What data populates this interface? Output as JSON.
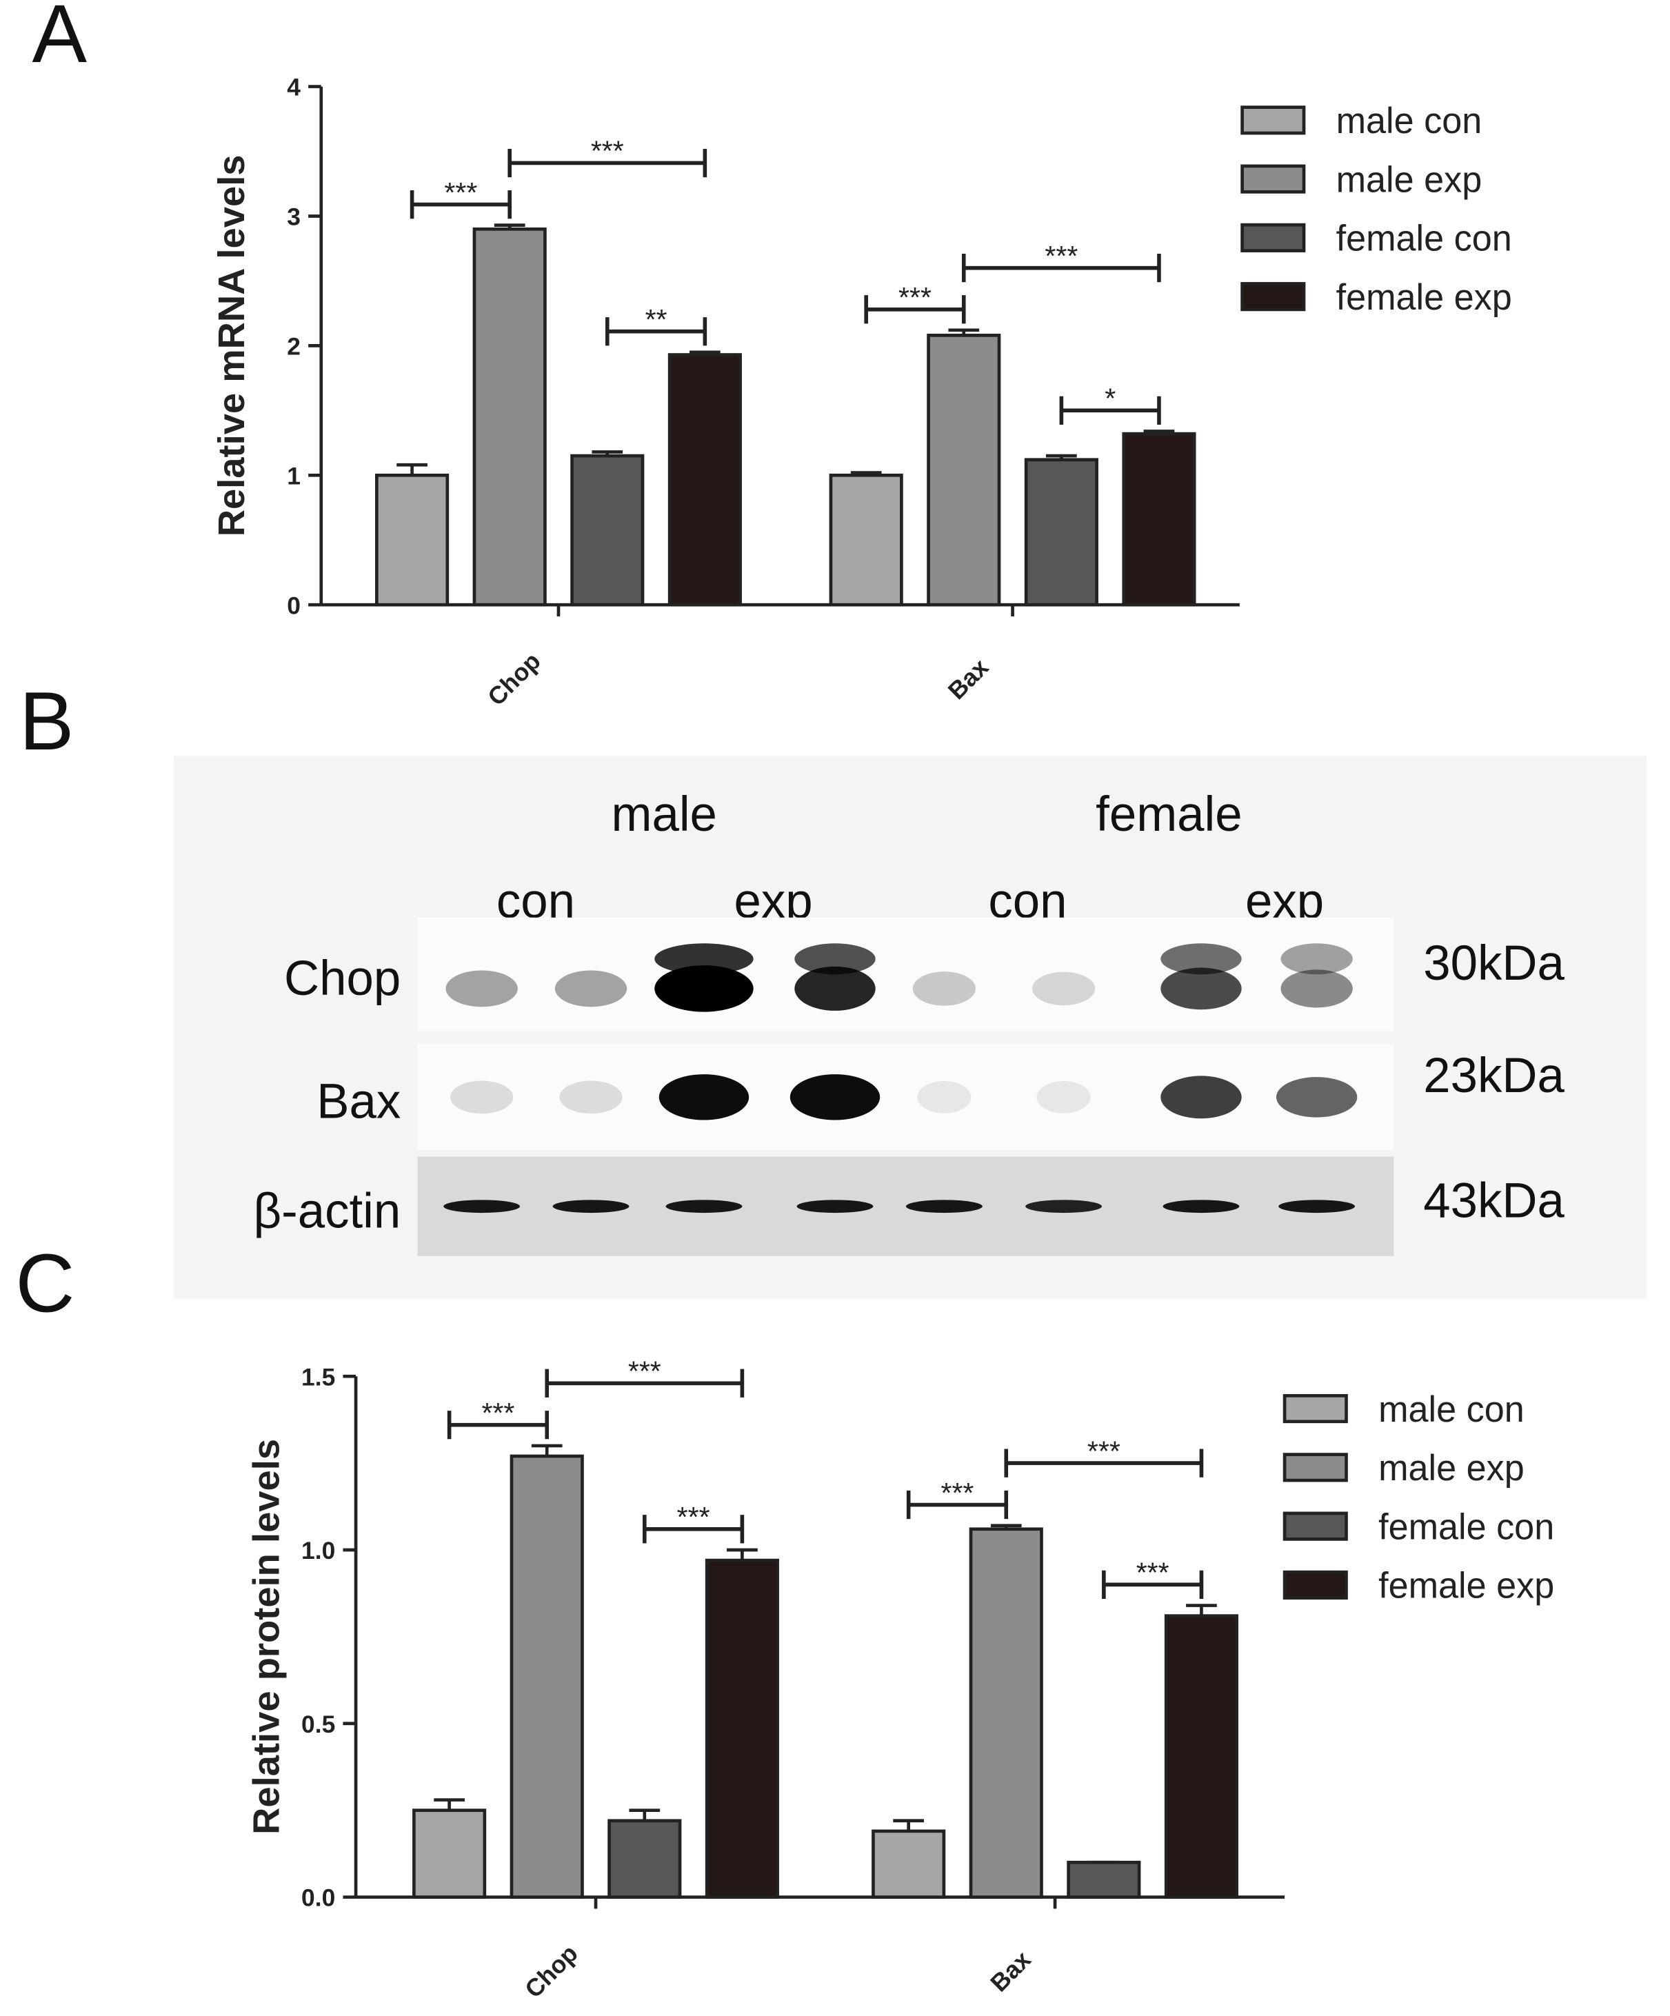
{
  "chart_data": [
    {
      "type": "bar",
      "panel": "A",
      "y_label": "Relative mRNA levels",
      "categories": [
        "Chop",
        "Bax"
      ],
      "series": [
        {
          "name": "male con",
          "color": "#a6a6a6",
          "values": [
            1.0,
            1.0
          ],
          "errors": [
            0.08,
            0.02
          ]
        },
        {
          "name": "male exp",
          "color": "#8c8c8c",
          "values": [
            2.9,
            2.08
          ],
          "errors": [
            0.03,
            0.04
          ]
        },
        {
          "name": "female con",
          "color": "#575757",
          "values": [
            1.15,
            1.12
          ],
          "errors": [
            0.03,
            0.03
          ]
        },
        {
          "name": "female exp",
          "color": "#231815",
          "values": [
            1.93,
            1.32
          ],
          "errors": [
            0.02,
            0.02
          ]
        }
      ],
      "ylim": [
        0,
        4
      ],
      "yticks": [
        0,
        1,
        2,
        3,
        4
      ],
      "annotations": [
        {
          "text": "***",
          "category": 0,
          "from": 0,
          "to": 1
        },
        {
          "text": "***",
          "category": 0,
          "from": 1,
          "to": 3
        },
        {
          "text": "**",
          "category": 0,
          "from": 2,
          "to": 3
        },
        {
          "text": "***",
          "category": 1,
          "from": 0,
          "to": 1
        },
        {
          "text": "***",
          "category": 1,
          "from": 1,
          "to": 3
        },
        {
          "text": "*",
          "category": 1,
          "from": 2,
          "to": 3
        }
      ]
    },
    {
      "type": "bar",
      "panel": "C",
      "y_label": "Relative protein levels",
      "categories": [
        "Chop",
        "Bax"
      ],
      "series": [
        {
          "name": "male con",
          "color": "#a6a6a6",
          "values": [
            0.25,
            0.19
          ],
          "errors": [
            0.03,
            0.03
          ]
        },
        {
          "name": "male exp",
          "color": "#8c8c8c",
          "values": [
            1.27,
            1.06
          ],
          "errors": [
            0.03,
            0.01
          ]
        },
        {
          "name": "female con",
          "color": "#575757",
          "values": [
            0.22,
            0.1
          ],
          "errors": [
            0.03,
            0.0
          ]
        },
        {
          "name": "female exp",
          "color": "#231815",
          "values": [
            0.97,
            0.81
          ],
          "errors": [
            0.03,
            0.03
          ]
        }
      ],
      "ylim": [
        0,
        1.5
      ],
      "yticks": [
        {
          "value": 0,
          "label": "0.0"
        },
        {
          "value": 0.5,
          "label": "0.5"
        },
        {
          "value": 1,
          "label": "1.0"
        },
        1.5
      ],
      "annotations": [
        {
          "text": "***",
          "category": 0,
          "from": 0,
          "to": 1
        },
        {
          "text": "***",
          "category": 0,
          "from": 1,
          "to": 3
        },
        {
          "text": "***",
          "category": 0,
          "from": 2,
          "to": 3
        },
        {
          "text": "***",
          "category": 1,
          "from": 0,
          "to": 1
        },
        {
          "text": "***",
          "category": 1,
          "from": 1,
          "to": 3
        },
        {
          "text": "***",
          "category": 1,
          "from": 2,
          "to": 3
        }
      ]
    }
  ],
  "blot": {
    "panel": "B",
    "groups": [
      "male",
      "female"
    ],
    "conditions": [
      "con",
      "exp",
      "con",
      "exp"
    ],
    "rows": [
      {
        "protein": "Chop",
        "size": "30kDa"
      },
      {
        "protein": "Bax",
        "size": "23kDa"
      },
      {
        "protein": "β-actin",
        "size": "43kDa"
      }
    ]
  }
}
